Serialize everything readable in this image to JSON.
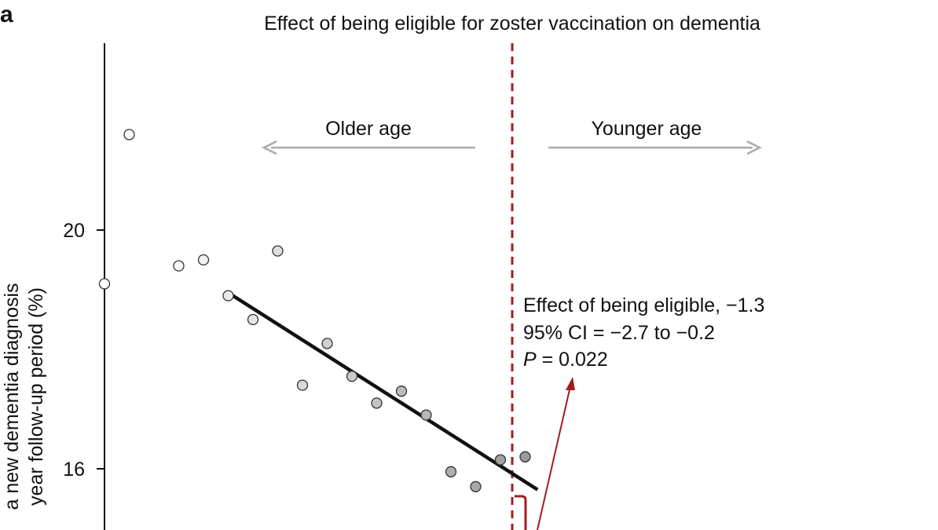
{
  "panel_label": "a",
  "chart_data": {
    "type": "scatter",
    "title": "Effect of being eligible for zoster vaccination on dementia",
    "ylabel_lines": [
      "a new dementia diagnosis",
      "year follow-up period (%)"
    ],
    "yticks": [
      20,
      16
    ],
    "y_visible_range": [
      14.9,
      23.2
    ],
    "cutoff_label_left": "Older age",
    "cutoff_label_right": "Younger age",
    "annotation": {
      "line1": "Effect of being eligible, −1.3",
      "line2": "95% CI = −2.7 to −0.2",
      "line3_symbol": "P",
      "line3_rest": " = 0.022"
    },
    "series": [
      {
        "values": [
          {
            "x": 0,
            "y": 19.1
          },
          {
            "x": 1,
            "y": 21.6
          },
          {
            "x": 3,
            "y": 19.4
          },
          {
            "x": 4,
            "y": 19.5
          },
          {
            "x": 7,
            "y": 19.65
          },
          {
            "x": 5,
            "y": 18.9
          },
          {
            "x": 6,
            "y": 18.5
          },
          {
            "x": 8,
            "y": 17.4
          },
          {
            "x": 9,
            "y": 18.1
          },
          {
            "x": 10,
            "y": 17.55
          },
          {
            "x": 11,
            "y": 17.1
          },
          {
            "x": 12,
            "y": 17.3
          },
          {
            "x": 13,
            "y": 16.9
          },
          {
            "x": 14,
            "y": 15.95
          },
          {
            "x": 15,
            "y": 15.7
          },
          {
            "x": 16,
            "y": 16.15
          },
          {
            "x": 17,
            "y": 16.2
          }
        ]
      }
    ],
    "fit_line": {
      "x_start": 5,
      "y_start": 18.95,
      "x_end": 17.5,
      "y_end": 15.65
    },
    "colors": {
      "axis": "#111111",
      "marker_edge": "#333333",
      "fit_line": "#111111",
      "cutoff": "#a11d1d",
      "arrow_gray": "#aaaaaa",
      "marker_light": "#ffffff",
      "marker_dark": "#9a9a9a"
    }
  }
}
